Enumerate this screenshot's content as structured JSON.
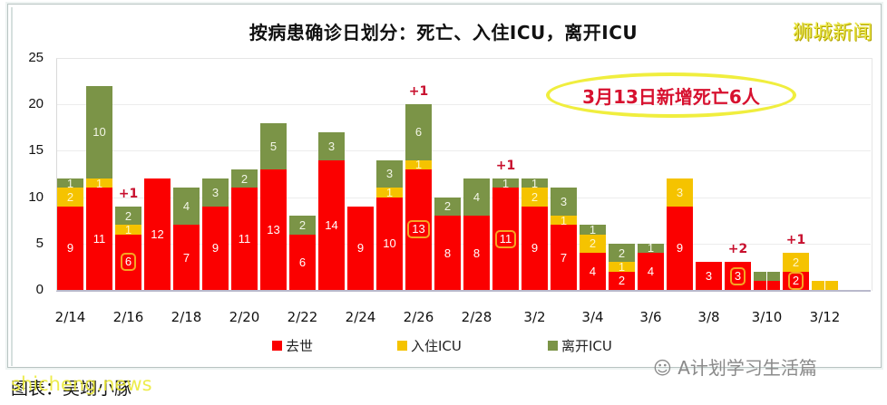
{
  "title": "按病患确诊日划分：死亡、入住ICU，离开ICU",
  "brand": "狮城新闻",
  "callout": "3月13日新增死亡6人",
  "credit": "图表：吴翊小豚",
  "watermark_en": "shicheng.news",
  "watermark_wechat": "A计划学习生活篇",
  "legend": [
    {
      "label": "去世",
      "color": "#fb0000"
    },
    {
      "label": "入住ICU",
      "color": "#f5c300"
    },
    {
      "label": "离开ICU",
      "color": "#7b9447"
    }
  ],
  "yticks": [
    "0",
    "5",
    "10",
    "15",
    "20",
    "25"
  ],
  "xticks": [
    "2/14",
    "2/16",
    "2/18",
    "2/20",
    "2/22",
    "2/24",
    "2/26",
    "2/28",
    "3/2",
    "3/4",
    "3/6",
    "3/8",
    "3/10",
    "3/12"
  ],
  "chart_data": {
    "type": "bar",
    "stacked": true,
    "title": "按病患确诊日划分：死亡、入住ICU，离开ICU",
    "xlabel": "",
    "ylabel": "",
    "ylim": [
      0,
      25
    ],
    "grid": true,
    "legend_position": "bottom",
    "categories": [
      "2/14",
      "2/15",
      "2/16",
      "2/17",
      "2/18",
      "2/19",
      "2/20",
      "2/21",
      "2/22",
      "2/23",
      "2/24",
      "2/25",
      "2/26",
      "2/27",
      "2/28",
      "3/1",
      "3/2",
      "3/3",
      "3/4",
      "3/5",
      "3/6",
      "3/7",
      "3/8",
      "3/9",
      "3/10",
      "3/11",
      "3/12"
    ],
    "series": [
      {
        "name": "去世",
        "color": "#fb0000",
        "values": [
          9,
          11,
          6,
          12,
          7,
          9,
          11,
          13,
          6,
          14,
          9,
          10,
          13,
          8,
          8,
          11,
          9,
          7,
          4,
          2,
          4,
          9,
          3,
          3,
          1,
          2,
          0
        ]
      },
      {
        "name": "入住ICU",
        "color": "#f5c300",
        "values": [
          2,
          1,
          1,
          0,
          0,
          0,
          0,
          0,
          0,
          0,
          0,
          1,
          1,
          0,
          0,
          0,
          2,
          1,
          2,
          1,
          0,
          3,
          0,
          0,
          0,
          2,
          1
        ]
      },
      {
        "name": "离开ICU",
        "color": "#7b9447",
        "values": [
          1,
          10,
          2,
          0,
          4,
          3,
          2,
          5,
          2,
          3,
          0,
          3,
          6,
          2,
          4,
          1,
          1,
          3,
          1,
          2,
          1,
          0,
          0,
          0,
          1,
          0,
          0
        ]
      }
    ],
    "annotations": [
      {
        "category": "2/16",
        "text": "+1",
        "circled": "6"
      },
      {
        "category": "2/26",
        "text": "+1",
        "circled": "13"
      },
      {
        "category": "3/1",
        "text": "+1",
        "circled": "11"
      },
      {
        "category": "3/9",
        "text": "+2",
        "circled": "3"
      },
      {
        "category": "3/11",
        "text": "+1",
        "circled": "2"
      }
    ],
    "callout": "3月13日新增死亡6人"
  }
}
